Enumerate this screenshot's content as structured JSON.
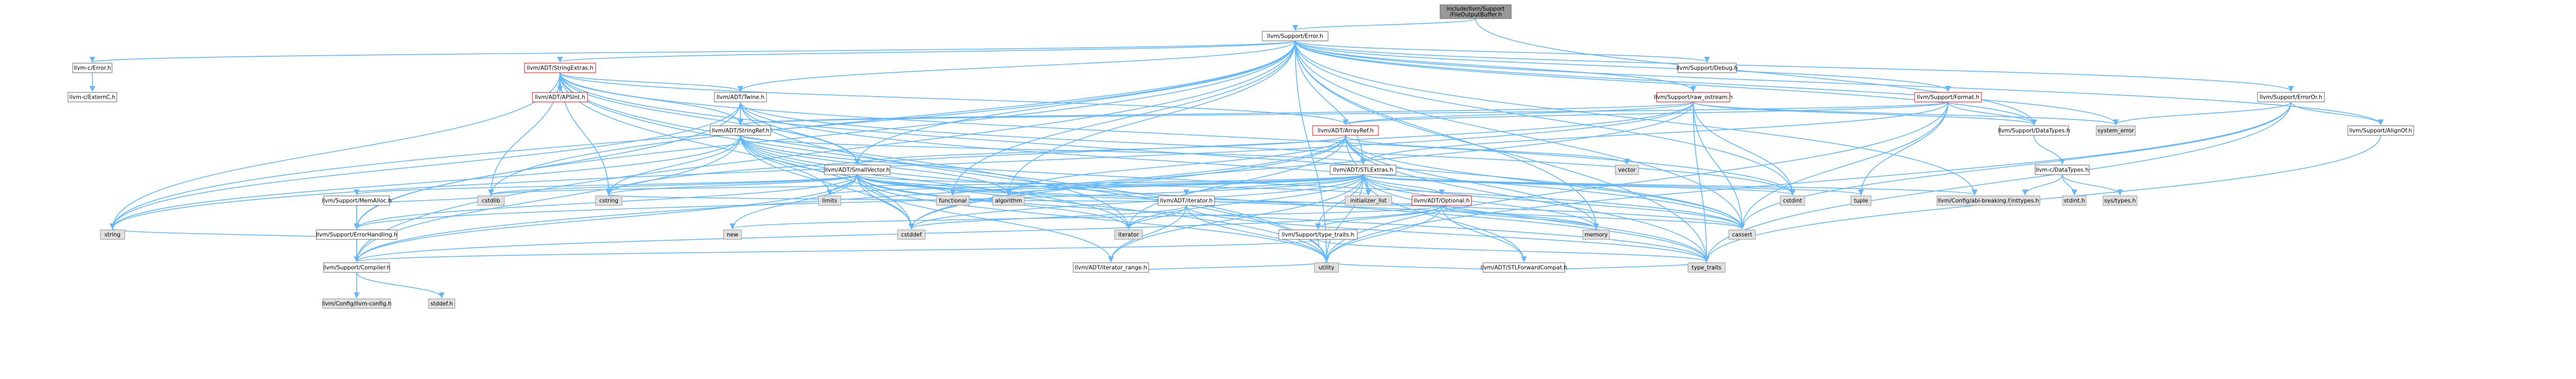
{
  "colors": {
    "edge": "#63b8ff",
    "root_fill": "#999999",
    "node_fill": "#ffffff",
    "node_border": "#666666",
    "missing_fill": "#e0e0e0",
    "missing_border": "#999999",
    "truncated_border": "#ff0000",
    "text": "#000000"
  },
  "nodes": [
    {
      "id": "root",
      "label": "include/llvm/Support/FileOutputBuffer.h",
      "kind": "root"
    },
    {
      "id": "error",
      "label": "llvm/Support/Error.h",
      "kind": "normal"
    },
    {
      "id": "c_error",
      "label": "llvm-c/Error.h",
      "kind": "normal"
    },
    {
      "id": "c_externc",
      "label": "llvm-c/ExternC.h",
      "kind": "normal"
    },
    {
      "id": "stringextras",
      "label": "llvm/ADT/StringExtras.h",
      "kind": "truncated"
    },
    {
      "id": "apsint",
      "label": "llvm/ADT/APSInt.h",
      "kind": "truncated"
    },
    {
      "id": "twine",
      "label": "llvm/ADT/Twine.h",
      "kind": "normal"
    },
    {
      "id": "stringref",
      "label": "llvm/ADT/StringRef.h",
      "kind": "normal"
    },
    {
      "id": "smallvector",
      "label": "llvm/ADT/SmallVector.h",
      "kind": "normal"
    },
    {
      "id": "memalloc",
      "label": "llvm/Support/MemAlloc.h",
      "kind": "normal"
    },
    {
      "id": "errhandling",
      "label": "llvm/Support/ErrorHandling.h",
      "kind": "normal"
    },
    {
      "id": "compiler",
      "label": "llvm/Support/Compiler.h",
      "kind": "normal"
    },
    {
      "id": "llvmconfig",
      "label": "llvm/Config/llvm-config.h",
      "kind": "missing"
    },
    {
      "id": "stddef",
      "label": "stddef.h",
      "kind": "missing"
    },
    {
      "id": "string",
      "label": "string",
      "kind": "missing"
    },
    {
      "id": "cstdlib",
      "label": "cstdlib",
      "kind": "missing"
    },
    {
      "id": "new",
      "label": "new",
      "kind": "missing"
    },
    {
      "id": "cstddef",
      "label": "cstddef",
      "kind": "missing"
    },
    {
      "id": "cstring",
      "label": "cstring",
      "kind": "missing"
    },
    {
      "id": "limits",
      "label": "limits",
      "kind": "missing"
    },
    {
      "id": "functional",
      "label": "functional",
      "kind": "missing"
    },
    {
      "id": "algorithm",
      "label": "algorithm",
      "kind": "missing"
    },
    {
      "id": "initlist",
      "label": "initializer_list",
      "kind": "missing"
    },
    {
      "id": "iterator",
      "label": "iterator",
      "kind": "missing"
    },
    {
      "id": "utility",
      "label": "utility",
      "kind": "missing"
    },
    {
      "id": "memory",
      "label": "memory",
      "kind": "missing"
    },
    {
      "id": "cassert",
      "label": "cassert",
      "kind": "missing"
    },
    {
      "id": "typetraits",
      "label": "type_traits",
      "kind": "missing"
    },
    {
      "id": "cstdint",
      "label": "cstdint",
      "kind": "missing"
    },
    {
      "id": "tuple",
      "label": "tuple",
      "kind": "missing"
    },
    {
      "id": "vector",
      "label": "vector",
      "kind": "missing"
    },
    {
      "id": "systemerror",
      "label": "system_error",
      "kind": "missing"
    },
    {
      "id": "abibreaking",
      "label": "llvm/Config/abi-breaking.h",
      "kind": "missing"
    },
    {
      "id": "arrayref",
      "label": "llvm/ADT/ArrayRef.h",
      "kind": "truncated"
    },
    {
      "id": "stlextras",
      "label": "llvm/ADT/STLExtras.h",
      "kind": "normal"
    },
    {
      "id": "adtiterator",
      "label": "llvm/ADT/iterator.h",
      "kind": "normal"
    },
    {
      "id": "optional",
      "label": "llvm/ADT/Optional.h",
      "kind": "truncated"
    },
    {
      "id": "iterrange",
      "label": "llvm/ADT/iterator_range.h",
      "kind": "normal"
    },
    {
      "id": "stlforward",
      "label": "llvm/ADT/STLForwardCompat.h",
      "kind": "normal"
    },
    {
      "id": "typetraitsh",
      "label": "llvm/Support/type_traits.h",
      "kind": "normal"
    },
    {
      "id": "rawostream",
      "label": "llvm/Support/raw_ostream.h",
      "kind": "truncated"
    },
    {
      "id": "format",
      "label": "llvm/Support/Format.h",
      "kind": "truncated"
    },
    {
      "id": "debug",
      "label": "llvm/Support/Debug.h",
      "kind": "normal"
    },
    {
      "id": "datatypes",
      "label": "llvm/Support/DataTypes.h",
      "kind": "normal"
    },
    {
      "id": "c_datatypes",
      "label": "llvm-c/DataTypes.h",
      "kind": "normal"
    },
    {
      "id": "inttypes",
      "label": "inttypes.h",
      "kind": "missing"
    },
    {
      "id": "stdint",
      "label": "stdint.h",
      "kind": "missing"
    },
    {
      "id": "systypes",
      "label": "sys/types.h",
      "kind": "missing"
    },
    {
      "id": "erroror",
      "label": "llvm/Support/ErrorOr.h",
      "kind": "normal"
    },
    {
      "id": "alignof",
      "label": "llvm/Support/AlignOf.h",
      "kind": "normal"
    }
  ],
  "edges": [
    [
      "root",
      "error"
    ],
    [
      "root",
      "datatypes"
    ],
    [
      "error",
      "c_error"
    ],
    [
      "error",
      "stringextras"
    ],
    [
      "error",
      "twine"
    ],
    [
      "error",
      "stlextras"
    ],
    [
      "error",
      "smallvector"
    ],
    [
      "error",
      "rawostream"
    ],
    [
      "error",
      "format"
    ],
    [
      "error",
      "debug"
    ],
    [
      "error",
      "erroror"
    ],
    [
      "error",
      "alignof"
    ],
    [
      "error",
      "datatypes"
    ],
    [
      "error",
      "abibreaking"
    ],
    [
      "error",
      "compiler"
    ],
    [
      "error",
      "errhandling"
    ],
    [
      "error",
      "string"
    ],
    [
      "error",
      "cstdint"
    ],
    [
      "error",
      "cassert"
    ],
    [
      "error",
      "memory"
    ],
    [
      "error",
      "systemerror"
    ],
    [
      "error",
      "typetraits"
    ],
    [
      "error",
      "utility"
    ],
    [
      "error",
      "algorithm"
    ],
    [
      "error",
      "cstdlib"
    ],
    [
      "error",
      "functional"
    ],
    [
      "c_error",
      "c_externc"
    ],
    [
      "stringextras",
      "apsint"
    ],
    [
      "stringextras",
      "arrayref"
    ],
    [
      "stringextras",
      "smallvector"
    ],
    [
      "stringextras",
      "stringref"
    ],
    [
      "stringextras",
      "twine"
    ],
    [
      "stringextras",
      "iterator"
    ],
    [
      "stringextras",
      "cassert"
    ],
    [
      "stringextras",
      "cstddef"
    ],
    [
      "stringextras",
      "cstdint"
    ],
    [
      "stringextras",
      "cstdlib"
    ],
    [
      "stringextras",
      "cstring"
    ],
    [
      "stringextras",
      "string"
    ],
    [
      "stringextras",
      "utility"
    ],
    [
      "twine",
      "smallvector"
    ],
    [
      "twine",
      "stringref"
    ],
    [
      "twine",
      "errhandling"
    ],
    [
      "twine",
      "cassert"
    ],
    [
      "twine",
      "cstdint"
    ],
    [
      "twine",
      "string"
    ],
    [
      "twine",
      "utility"
    ],
    [
      "stringref",
      "stlextras"
    ],
    [
      "stringref",
      "compiler"
    ],
    [
      "stringref",
      "algorithm"
    ],
    [
      "stringref",
      "cassert"
    ],
    [
      "stringref",
      "cstddef"
    ],
    [
      "stringref",
      "cstring"
    ],
    [
      "stringref",
      "limits"
    ],
    [
      "stringref",
      "string"
    ],
    [
      "stringref",
      "typetraits"
    ],
    [
      "stringref",
      "utility"
    ],
    [
      "stringref",
      "iterator"
    ],
    [
      "smallvector",
      "memalloc"
    ],
    [
      "smallvector",
      "errhandling"
    ],
    [
      "smallvector",
      "compiler"
    ],
    [
      "smallvector",
      "type_traits"
    ],
    [
      "smallvector",
      "algorithm"
    ],
    [
      "smallvector",
      "cassert"
    ],
    [
      "smallvector",
      "cstddef"
    ],
    [
      "smallvector",
      "cstdlib"
    ],
    [
      "smallvector",
      "cstring"
    ],
    [
      "smallvector",
      "functional"
    ],
    [
      "smallvector",
      "initlist"
    ],
    [
      "smallvector",
      "iterator"
    ],
    [
      "smallvector",
      "limits"
    ],
    [
      "smallvector",
      "memory"
    ],
    [
      "smallvector",
      "new"
    ],
    [
      "smallvector",
      "typetraits"
    ],
    [
      "smallvector",
      "utility"
    ],
    [
      "smallvector",
      "iterrange"
    ],
    [
      "memalloc",
      "compiler"
    ],
    [
      "memalloc",
      "errhandling"
    ],
    [
      "memalloc",
      "cstdlib"
    ],
    [
      "errhandling",
      "compiler"
    ],
    [
      "errhandling",
      "string"
    ],
    [
      "compiler",
      "llvmconfig"
    ],
    [
      "compiler",
      "stddef"
    ],
    [
      "arrayref",
      "smallvector"
    ],
    [
      "arrayref",
      "stlextras"
    ],
    [
      "arrayref",
      "compiler"
    ],
    [
      "arrayref",
      "algorithm"
    ],
    [
      "arrayref",
      "array"
    ],
    [
      "arrayref",
      "cassert"
    ],
    [
      "arrayref",
      "cstddef"
    ],
    [
      "arrayref",
      "initlist"
    ],
    [
      "arrayref",
      "iterator"
    ],
    [
      "arrayref",
      "memory"
    ],
    [
      "arrayref",
      "typetraits"
    ],
    [
      "arrayref",
      "vector"
    ],
    [
      "stlextras",
      "adtiterator"
    ],
    [
      "stlextras",
      "optional"
    ],
    [
      "stlextras",
      "iterrange"
    ],
    [
      "stlextras",
      "stlforward"
    ],
    [
      "stlextras",
      "typetraitsh"
    ],
    [
      "stlextras",
      "errhandling"
    ],
    [
      "stlextras",
      "abibreaking"
    ],
    [
      "stlextras",
      "algorithm"
    ],
    [
      "stlextras",
      "cassert"
    ],
    [
      "stlextras",
      "cstddef"
    ],
    [
      "stlextras",
      "cstdint"
    ],
    [
      "stlextras",
      "cstdlib"
    ],
    [
      "stlextras",
      "functional"
    ],
    [
      "stlextras",
      "initlist"
    ],
    [
      "stlextras",
      "iterator"
    ],
    [
      "stlextras",
      "limits"
    ],
    [
      "stlextras",
      "memory"
    ],
    [
      "stlextras",
      "tuple"
    ],
    [
      "stlextras",
      "typetraits"
    ],
    [
      "stlextras",
      "utility"
    ],
    [
      "adtiterator",
      "iterrange"
    ],
    [
      "adtiterator",
      "cstddef"
    ],
    [
      "adtiterator",
      "iterator"
    ],
    [
      "adtiterator",
      "typetraits"
    ],
    [
      "adtiterator",
      "utility"
    ],
    [
      "optional",
      "stlforward"
    ],
    [
      "optional",
      "typetraitsh"
    ],
    [
      "optional",
      "compiler"
    ],
    [
      "optional",
      "cassert"
    ],
    [
      "optional",
      "cstring"
    ],
    [
      "optional",
      "new"
    ],
    [
      "optional",
      "utility"
    ],
    [
      "optional",
      "memory"
    ],
    [
      "iterrange",
      "utility"
    ],
    [
      "stlforward",
      "typetraits"
    ],
    [
      "stlforward",
      "utility"
    ],
    [
      "typetraitsh",
      "compiler"
    ],
    [
      "typetraitsh",
      "typetraits"
    ],
    [
      "typetraitsh",
      "utility"
    ],
    [
      "rawostream",
      "arrayref"
    ],
    [
      "rawostream",
      "stringref"
    ],
    [
      "rawostream",
      "datatypes"
    ],
    [
      "rawostream",
      "cassert"
    ],
    [
      "rawostream",
      "cstddef"
    ],
    [
      "rawostream",
      "cstdint"
    ],
    [
      "rawostream",
      "cstring"
    ],
    [
      "rawostream",
      "string"
    ],
    [
      "rawostream",
      "systemerror"
    ],
    [
      "rawostream",
      "typetraits"
    ],
    [
      "format",
      "arrayref"
    ],
    [
      "format",
      "stlextras"
    ],
    [
      "format",
      "stringref"
    ],
    [
      "format",
      "datatypes"
    ],
    [
      "format",
      "cassert"
    ],
    [
      "format",
      "cstdio"
    ],
    [
      "format",
      "tuple"
    ],
    [
      "format",
      "utility"
    ],
    [
      "datatypes",
      "c_datatypes"
    ],
    [
      "c_datatypes",
      "inttypes"
    ],
    [
      "c_datatypes",
      "stdint"
    ],
    [
      "c_datatypes",
      "systypes"
    ],
    [
      "erroror",
      "alignof"
    ],
    [
      "erroror",
      "cassert"
    ],
    [
      "erroror",
      "systemerror"
    ],
    [
      "erroror",
      "typetraits"
    ],
    [
      "erroror",
      "utility"
    ],
    [
      "alignof",
      "typetraits"
    ]
  ]
}
